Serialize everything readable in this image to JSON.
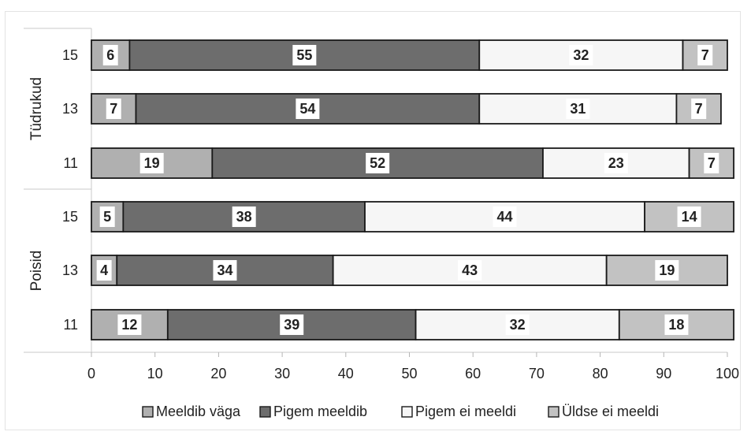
{
  "colors": {
    "meeldib_vaga": "#b0b0b0",
    "pigem_meeldib": "#6d6d6d",
    "pigem_ei_meeldi": "#f6f6f6",
    "uldse_ei_meeldi": "#c2c2c2",
    "bar_border": "#1a1a1a",
    "label_box": "#ffffff",
    "text": "#222222"
  },
  "chart_data": {
    "type": "bar",
    "orientation": "horizontal",
    "stacked": true,
    "title": "",
    "xlabel": "",
    "ylabel": "",
    "xlim": [
      0,
      100
    ],
    "x_ticks": [
      0,
      10,
      20,
      30,
      40,
      50,
      60,
      70,
      80,
      90,
      100
    ],
    "grid": false,
    "legend_position": "bottom",
    "groups": [
      {
        "label": "Tüdrukud",
        "rows": [
          "15",
          "13",
          "11"
        ]
      },
      {
        "label": "Poisid",
        "rows": [
          "15",
          "13",
          "11"
        ]
      }
    ],
    "categories": [
      "15",
      "13",
      "11",
      "15",
      "13",
      "11"
    ],
    "series": [
      {
        "name": "Meeldib väga",
        "values": [
          6,
          7,
          19,
          5,
          4,
          12
        ]
      },
      {
        "name": "Pigem meeldib",
        "values": [
          55,
          54,
          52,
          38,
          34,
          39
        ]
      },
      {
        "name": "Pigem ei meeldi",
        "values": [
          32,
          31,
          23,
          44,
          43,
          32
        ]
      },
      {
        "name": "Üldse ei meeldi",
        "values": [
          7,
          7,
          7,
          14,
          19,
          18
        ]
      }
    ]
  }
}
